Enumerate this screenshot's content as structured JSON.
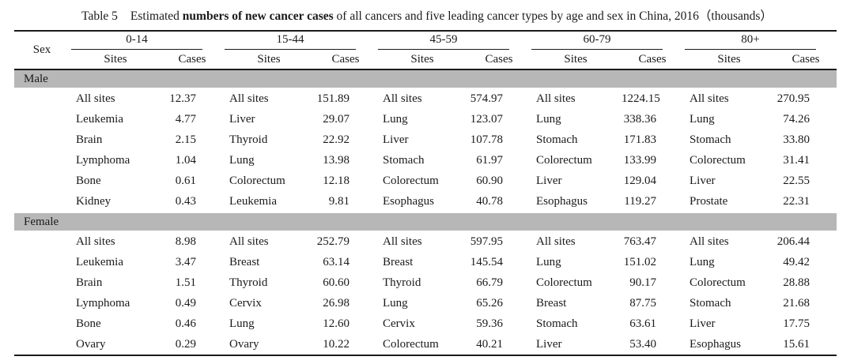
{
  "title": {
    "label": "Table 5",
    "pre": "Estimated ",
    "bold": "numbers of new cancer cases",
    "post": " of all cancers and five leading cancer types by age and sex in China, 2016（thousands）"
  },
  "table": {
    "sex_header": "Sex",
    "age_groups": [
      "0-14",
      "15-44",
      "45-59",
      "60-79",
      "80+"
    ],
    "subheaders": {
      "sites": "Sites",
      "cases": "Cases"
    },
    "sections": [
      {
        "sex": "Male",
        "rows": [
          [
            [
              "All sites",
              "12.37"
            ],
            [
              "All sites",
              "151.89"
            ],
            [
              "All sites",
              "574.97"
            ],
            [
              "All sites",
              "1224.15"
            ],
            [
              "All sites",
              "270.95"
            ]
          ],
          [
            [
              "Leukemia",
              "4.77"
            ],
            [
              "Liver",
              "29.07"
            ],
            [
              "Lung",
              "123.07"
            ],
            [
              "Lung",
              "338.36"
            ],
            [
              "Lung",
              "74.26"
            ]
          ],
          [
            [
              "Brain",
              "2.15"
            ],
            [
              "Thyroid",
              "22.92"
            ],
            [
              "Liver",
              "107.78"
            ],
            [
              "Stomach",
              "171.83"
            ],
            [
              "Stomach",
              "33.80"
            ]
          ],
          [
            [
              "Lymphoma",
              "1.04"
            ],
            [
              "Lung",
              "13.98"
            ],
            [
              "Stomach",
              "61.97"
            ],
            [
              "Colorectum",
              "133.99"
            ],
            [
              "Colorectum",
              "31.41"
            ]
          ],
          [
            [
              "Bone",
              "0.61"
            ],
            [
              "Colorectum",
              "12.18"
            ],
            [
              "Colorectum",
              "60.90"
            ],
            [
              "Liver",
              "129.04"
            ],
            [
              "Liver",
              "22.55"
            ]
          ],
          [
            [
              "Kidney",
              "0.43"
            ],
            [
              "Leukemia",
              "9.81"
            ],
            [
              "Esophagus",
              "40.78"
            ],
            [
              "Esophagus",
              "119.27"
            ],
            [
              "Prostate",
              "22.31"
            ]
          ]
        ]
      },
      {
        "sex": "Female",
        "rows": [
          [
            [
              "All sites",
              "8.98"
            ],
            [
              "All sites",
              "252.79"
            ],
            [
              "All sites",
              "597.95"
            ],
            [
              "All sites",
              "763.47"
            ],
            [
              "All sites",
              "206.44"
            ]
          ],
          [
            [
              "Leukemia",
              "3.47"
            ],
            [
              "Breast",
              "63.14"
            ],
            [
              "Breast",
              "145.54"
            ],
            [
              "Lung",
              "151.02"
            ],
            [
              "Lung",
              "49.42"
            ]
          ],
          [
            [
              "Brain",
              "1.51"
            ],
            [
              "Thyroid",
              "60.60"
            ],
            [
              "Thyroid",
              "66.79"
            ],
            [
              "Colorectum",
              "90.17"
            ],
            [
              "Colorectum",
              "28.88"
            ]
          ],
          [
            [
              "Lymphoma",
              "0.49"
            ],
            [
              "Cervix",
              "26.98"
            ],
            [
              "Lung",
              "65.26"
            ],
            [
              "Breast",
              "87.75"
            ],
            [
              "Stomach",
              "21.68"
            ]
          ],
          [
            [
              "Bone",
              "0.46"
            ],
            [
              "Lung",
              "12.60"
            ],
            [
              "Cervix",
              "59.36"
            ],
            [
              "Stomach",
              "63.61"
            ],
            [
              "Liver",
              "17.75"
            ]
          ],
          [
            [
              "Ovary",
              "0.29"
            ],
            [
              "Ovary",
              "10.22"
            ],
            [
              "Colorectum",
              "40.21"
            ],
            [
              "Liver",
              "53.40"
            ],
            [
              "Esophagus",
              "15.61"
            ]
          ]
        ]
      }
    ]
  },
  "colors": {
    "section_band": "#b7b7b7",
    "rule": "#1a1a1a",
    "background": "#ffffff"
  }
}
